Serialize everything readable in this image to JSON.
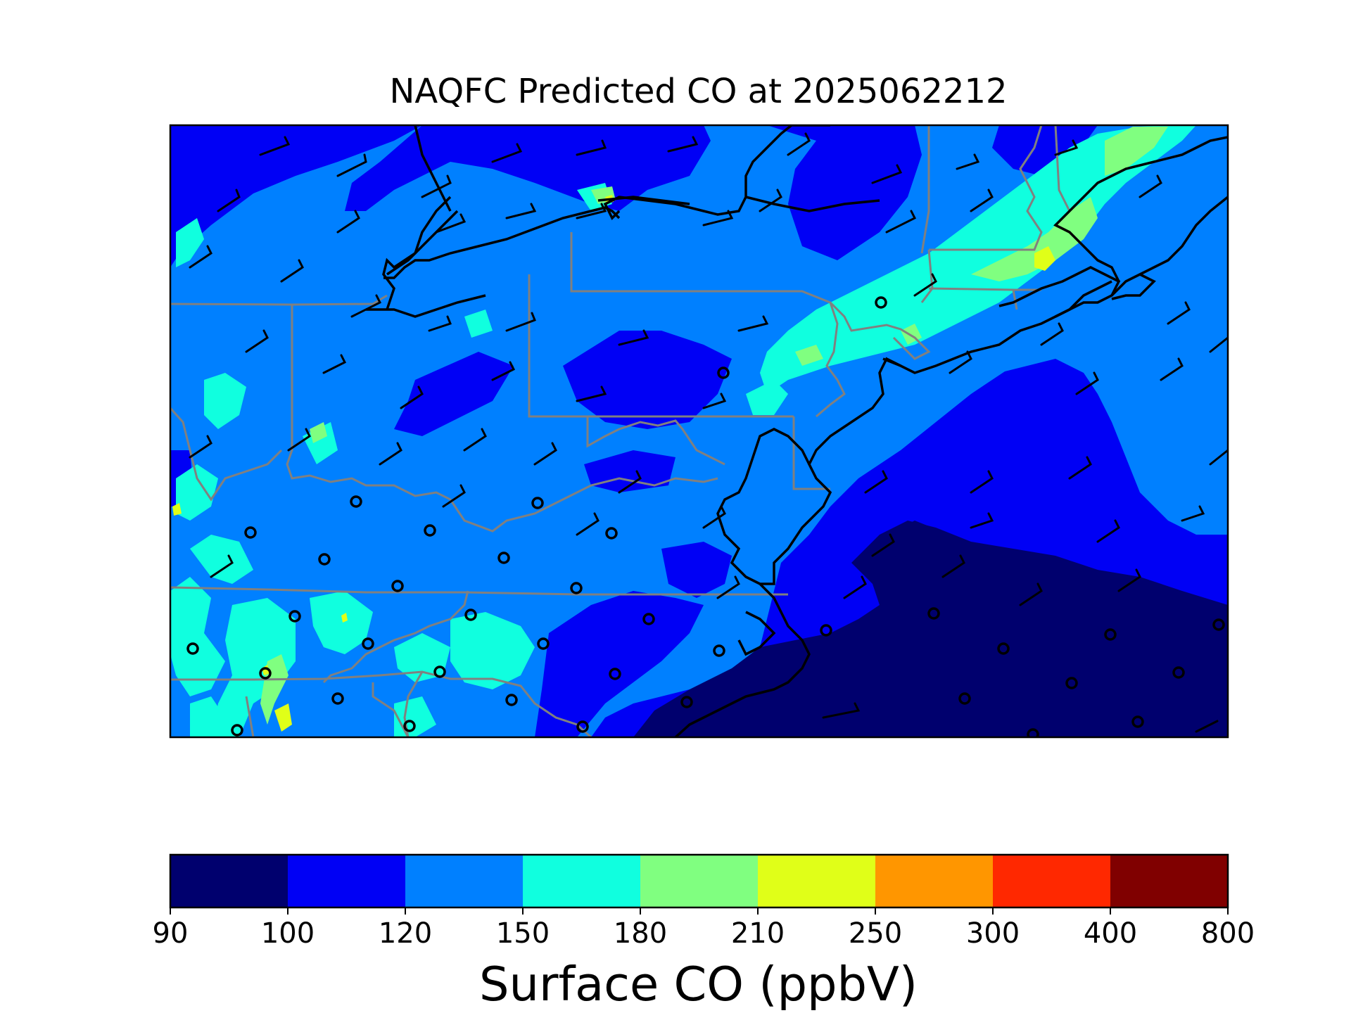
{
  "title": "NAQFC Predicted CO at 2025062212",
  "colorbar": {
    "label": "Surface CO (ppbV)",
    "ticks": [
      "90",
      "100",
      "120",
      "150",
      "180",
      "210",
      "250",
      "300",
      "400",
      "800"
    ],
    "colors": [
      "#00006e",
      "#0000f5",
      "#0080ff",
      "#10ffdf",
      "#80ff80",
      "#e0ff18",
      "#ff9600",
      "#ff2800",
      "#800000"
    ]
  },
  "chart_data": {
    "type": "heatmap",
    "title": "NAQFC Predicted CO at 2025062212",
    "variable": "Surface CO",
    "units": "ppbV",
    "levels": [
      90,
      100,
      120,
      150,
      180,
      210,
      250,
      300,
      400,
      800
    ],
    "level_colors": [
      "#00006e",
      "#0000f5",
      "#0080ff",
      "#10ffdf",
      "#80ff80",
      "#e0ff18",
      "#ff9600",
      "#ff2800",
      "#800000"
    ],
    "region": "Northeastern / Mid-Atlantic United States and adjacent Atlantic",
    "dominant_land_range_ppbv": [
      120,
      150
    ],
    "offshore_range_ppbv": [
      90,
      120
    ],
    "max_range_ppbv": [
      210,
      250
    ],
    "overlays": [
      "wind barbs",
      "calm-wind circles",
      "state boundaries",
      "coastlines"
    ]
  }
}
